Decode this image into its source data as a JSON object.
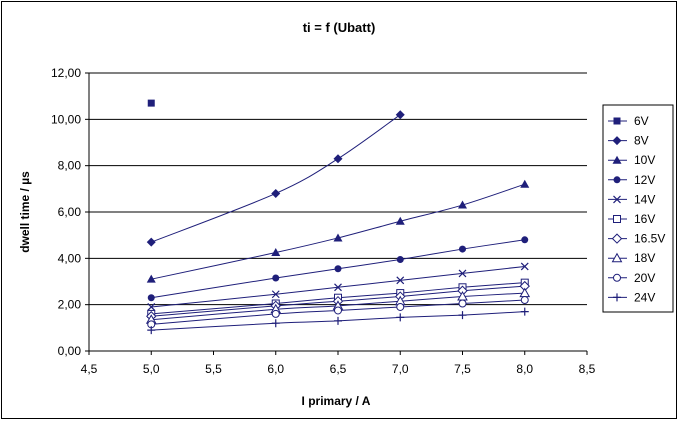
{
  "chart_data": {
    "type": "scatter",
    "title": "ti = f (Ubatt)",
    "xlabel": "I primary / A",
    "ylabel": "dwell time / µs",
    "xlim": [
      4.5,
      8.5
    ],
    "ylim": [
      0,
      12
    ],
    "x_ticks": [
      "4,5",
      "5,0",
      "5,5",
      "6,0",
      "6,5",
      "7,0",
      "7,5",
      "8,0",
      "8,5"
    ],
    "y_ticks": [
      "0,00",
      "2,00",
      "4,00",
      "6,00",
      "8,00",
      "10,00",
      "12,00"
    ],
    "grid": "horizontal",
    "legend_position": "right",
    "series_color": "#1f1f7a",
    "series": [
      {
        "name": "6V",
        "marker": "square-filled",
        "x": [
          5.0
        ],
        "y": [
          10.7
        ]
      },
      {
        "name": "8V",
        "marker": "diamond-filled",
        "x": [
          5.0,
          6.0,
          6.5,
          7.0
        ],
        "y": [
          4.7,
          6.8,
          8.3,
          10.2
        ]
      },
      {
        "name": "10V",
        "marker": "triangle-filled",
        "x": [
          5.0,
          6.0,
          6.5,
          7.0,
          7.5,
          8.0
        ],
        "y": [
          3.1,
          4.25,
          4.88,
          5.6,
          6.3,
          7.2
        ]
      },
      {
        "name": "12V",
        "marker": "circle-filled",
        "x": [
          5.0,
          6.0,
          6.5,
          7.0,
          7.5,
          8.0
        ],
        "y": [
          2.3,
          3.15,
          3.55,
          3.95,
          4.4,
          4.8
        ]
      },
      {
        "name": "14V",
        "marker": "x",
        "x": [
          5.0,
          6.0,
          6.5,
          7.0,
          7.5,
          8.0
        ],
        "y": [
          1.9,
          2.45,
          2.75,
          3.05,
          3.35,
          3.65
        ]
      },
      {
        "name": "16V",
        "marker": "square-open",
        "x": [
          5.0,
          6.0,
          6.5,
          7.0,
          7.5,
          8.0
        ],
        "y": [
          1.6,
          2.05,
          2.3,
          2.5,
          2.75,
          2.95
        ]
      },
      {
        "name": "16.5V",
        "marker": "diamond-open",
        "x": [
          5.0,
          6.0,
          6.5,
          7.0,
          7.5,
          8.0
        ],
        "y": [
          1.5,
          1.95,
          2.15,
          2.35,
          2.6,
          2.8
        ]
      },
      {
        "name": "18V",
        "marker": "triangle-open",
        "x": [
          5.0,
          6.0,
          6.5,
          7.0,
          7.5,
          8.0
        ],
        "y": [
          1.35,
          1.8,
          1.95,
          2.15,
          2.35,
          2.5
        ]
      },
      {
        "name": "20V",
        "marker": "circle-open",
        "x": [
          5.0,
          6.0,
          6.5,
          7.0,
          7.5,
          8.0
        ],
        "y": [
          1.15,
          1.6,
          1.75,
          1.9,
          2.05,
          2.2
        ]
      },
      {
        "name": "24V",
        "marker": "plus",
        "x": [
          5.0,
          6.0,
          6.5,
          7.0,
          7.5,
          8.0
        ],
        "y": [
          0.9,
          1.2,
          1.3,
          1.45,
          1.55,
          1.7
        ]
      }
    ]
  }
}
